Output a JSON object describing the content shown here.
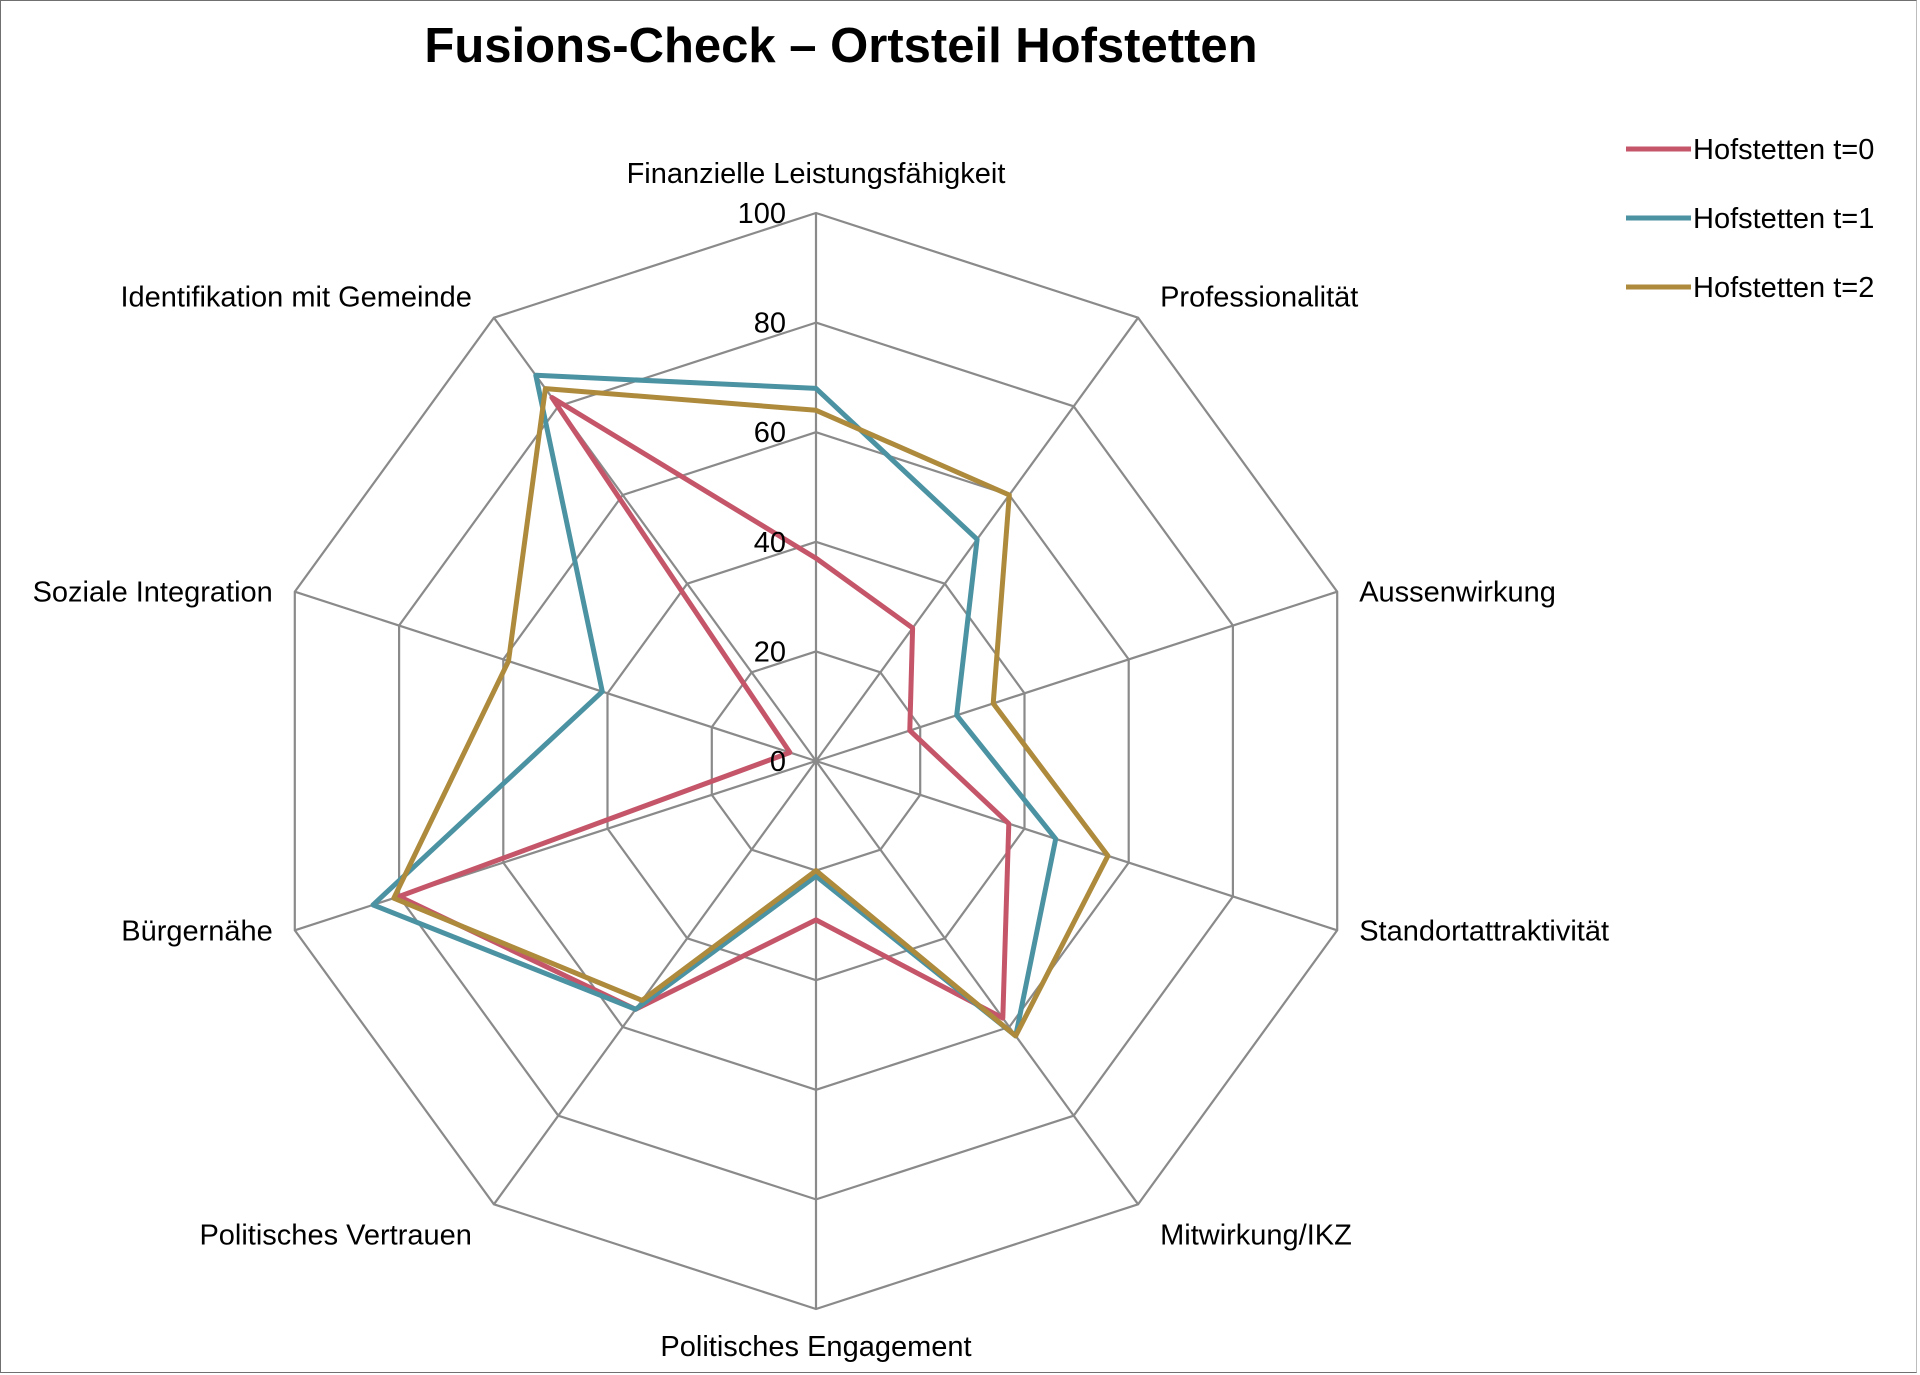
{
  "chart_data": {
    "type": "radar",
    "title": "Fusions-Check – Ortsteil Hofstetten",
    "categories": [
      "Finanzielle Leistungsfähigkeit",
      "Professionalität",
      "Aussenwirkung",
      "Standortattraktivität",
      "Mitwirkung/IKZ",
      "Politisches Engagement",
      "Politisches Vertrauen",
      "Bürgernähe",
      "Soziale Integration",
      "Identifikation mit Gemeinde"
    ],
    "rlim": [
      0,
      100
    ],
    "ticks": [
      "0",
      "20",
      "40",
      "60",
      "80",
      "100"
    ],
    "tick_values": [
      0,
      20,
      40,
      60,
      80,
      100
    ],
    "legend_position": "top-right",
    "series": [
      {
        "name": "Hofstetten t=0",
        "color": "#c5566a",
        "values": [
          37,
          30,
          18,
          37,
          58,
          29,
          56,
          80,
          5,
          82
        ]
      },
      {
        "name": "Hofstetten t=1",
        "color": "#4b92a2",
        "values": [
          68,
          50,
          27,
          46,
          62,
          21,
          56,
          85,
          41,
          87
        ]
      },
      {
        "name": "Hofstetten t=2",
        "color": "#ad8a3c",
        "values": [
          64,
          60,
          34,
          56,
          62,
          20,
          54,
          81,
          59,
          84
        ]
      }
    ]
  }
}
